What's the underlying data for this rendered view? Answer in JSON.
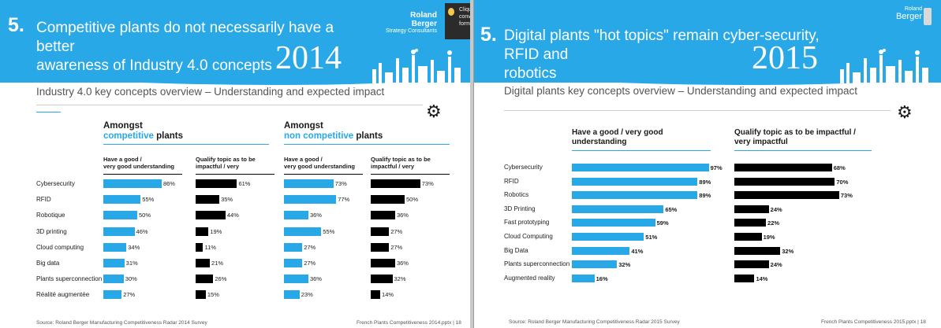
{
  "slide2014": {
    "number": "5.",
    "title_line1": "Competitive plants do not necessarily have a better",
    "title_line2": "awareness of Industry 4.0 concepts",
    "year": "2014",
    "brand_name": "Roland Berger",
    "brand_sub": "Strategy Consultants",
    "subtitle": "Industry 4.0 key concepts overview – Understanding and expected impact",
    "group1_line1": "Amongst",
    "group1_accent": "competitive",
    "group1_rest": " plants",
    "group2_line1": "Amongst",
    "group2_accent": "non competitive",
    "group2_rest": " plants",
    "col_understanding_1": "Have a good /",
    "col_understanding_2": "very good understanding",
    "col_impact_1": "Qualify topic as to be",
    "col_impact_2": "impactful / very",
    "footer_source": "Source: Roland Berger Manufacturing Competitiveness Radar 2014 Survey",
    "footer_file": "French Plants Competitiveness 2014.pptx   |   18",
    "tooltip_text": [
      "Cliqu",
      "conv",
      "form"
    ]
  },
  "slide2015": {
    "number": "5.",
    "title_line1": "Digital plants \"hot topics\" remain cyber-security, RFID and",
    "title_line2": "robotics",
    "year": "2015",
    "brand_name": "Roland",
    "brand_sub": "Berger",
    "subtitle": "Digital plants key concepts overview – Understanding and expected impact",
    "col_understanding_1": "Have a good / very good",
    "col_understanding_2": "understanding",
    "col_impact_1": "Qualify topic as to be impactful /",
    "col_impact_2": "very impactful",
    "footer_source": "Source: Roland Berger Manufacturing Competitiveness Radar 2015 Survey",
    "footer_file": "French Plants Competitiveness 2015.pptx   |   18"
  },
  "colors": {
    "blue": "#29a8e8",
    "black": "#000000"
  },
  "chart_data": [
    {
      "type": "bar",
      "title": "Industry 4.0 key concepts overview – Understanding and expected impact",
      "categories": [
        "Cybersecurity",
        "RFID",
        "Robotique",
        "3D printing",
        "Cloud computing",
        "Big data",
        "Plants superconnection",
        "Réalité augmentée"
      ],
      "series": [
        {
          "name": "Amongst competitive plants – Have a good / very good understanding",
          "color": "#29a8e8",
          "values": [
            86,
            55,
            50,
            46,
            34,
            31,
            30,
            27
          ]
        },
        {
          "name": "Amongst competitive plants – Qualify topic as to be impactful / very",
          "color": "#000000",
          "values": [
            61,
            35,
            44,
            19,
            11,
            21,
            26,
            15
          ]
        },
        {
          "name": "Amongst non competitive plants – Have a good / very good understanding",
          "color": "#29a8e8",
          "values": [
            73,
            77,
            36,
            55,
            27,
            27,
            36,
            23
          ]
        },
        {
          "name": "Amongst non competitive plants – Qualify topic as to be impactful / very",
          "color": "#000000",
          "values": [
            73,
            50,
            36,
            27,
            27,
            36,
            32,
            14
          ]
        }
      ],
      "unit": "%"
    },
    {
      "type": "bar",
      "title": "Digital plants key concepts overview – Understanding and expected impact",
      "categories": [
        "Cybersecurity",
        "RFID",
        "Robotics",
        "3D Printing",
        "Fast prototyping",
        "Cloud Computing",
        "Big Data",
        "Plants superconnection",
        "Augmented reality"
      ],
      "series": [
        {
          "name": "Have a good / very good understanding",
          "color": "#29a8e8",
          "values": [
            97,
            89,
            89,
            65,
            59,
            51,
            41,
            32,
            16
          ]
        },
        {
          "name": "Qualify topic as to be impactful / very impactful",
          "color": "#000000",
          "values": [
            68,
            70,
            73,
            24,
            22,
            19,
            32,
            24,
            14
          ]
        }
      ],
      "unit": "%"
    }
  ]
}
